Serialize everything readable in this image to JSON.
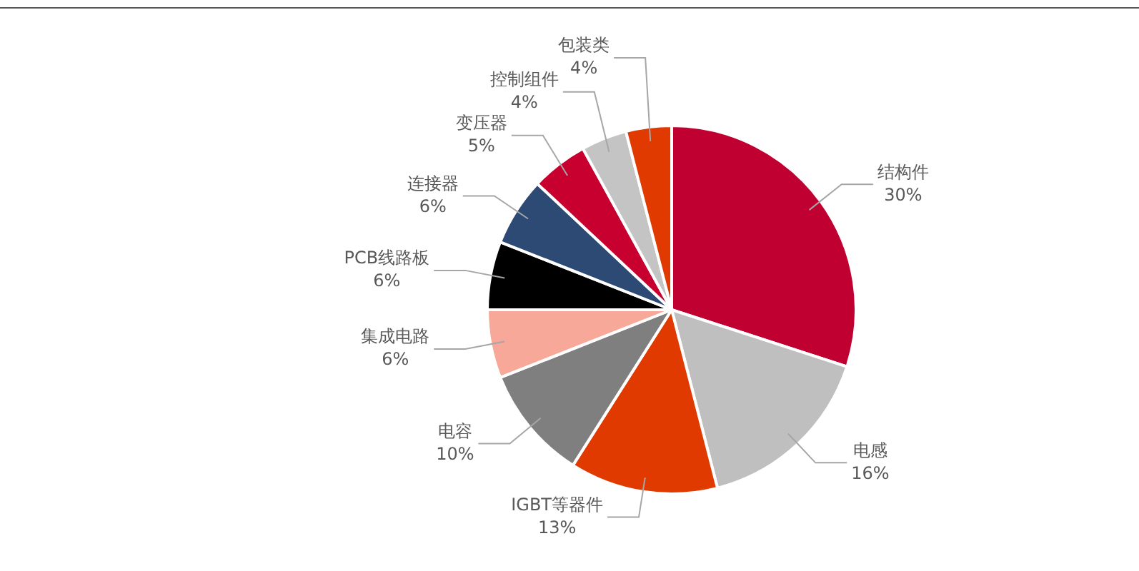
{
  "chart_data": {
    "type": "pie",
    "categories": [
      "结构件",
      "电感",
      "IGBT等器件",
      "电容",
      "集成电路",
      "PCB线路板",
      "连接器",
      "变压器",
      "控制组件",
      "包装类"
    ],
    "values": [
      30,
      16,
      13,
      10,
      6,
      6,
      6,
      5,
      4,
      4
    ],
    "value_labels": [
      "30%",
      "16%",
      "13%",
      "10%",
      "6%",
      "6%",
      "6%",
      "5%",
      "4%",
      "4%"
    ],
    "colors": [
      "#c00030",
      "#bfbfbf",
      "#e03a00",
      "#7f7f7f",
      "#f8a898",
      "#000000",
      "#2c4a74",
      "#c8002f",
      "#c4c4c4",
      "#e03a00"
    ],
    "legend": false
  }
}
